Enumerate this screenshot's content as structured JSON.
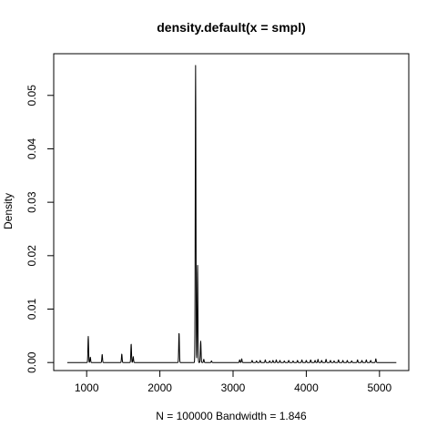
{
  "chart_data": {
    "type": "line",
    "title": "density.default(x = smpl)",
    "xlabel": "N = 100000   Bandwidth = 1.846",
    "ylabel": "Density",
    "xlim": [
      550,
      5400
    ],
    "ylim": [
      -0.0015,
      0.0578
    ],
    "xticks": [
      1000,
      2000,
      3000,
      4000,
      5000
    ],
    "yticks": [
      0.0,
      0.01,
      0.02,
      0.03,
      0.04,
      0.05
    ],
    "ytick_labels": [
      "0.00",
      "0.01",
      "0.02",
      "0.03",
      "0.04",
      "0.05"
    ],
    "grid": false,
    "legend": "none",
    "line_color": "#000000",
    "curve_range": [
      735,
      5230
    ],
    "series": [
      {
        "peaks": [
          [
            1022,
            0.0049
          ],
          [
            1050,
            0.001
          ],
          [
            1212,
            0.0015
          ],
          [
            1480,
            0.0016
          ],
          [
            1608,
            0.0035
          ],
          [
            1636,
            0.0011
          ],
          [
            2262,
            0.0056
          ],
          [
            2488,
            0.0556
          ],
          [
            2515,
            0.0183
          ],
          [
            2558,
            0.004
          ],
          [
            2600,
            0.0006
          ],
          [
            2705,
            0.0003
          ],
          [
            3090,
            0.0005
          ],
          [
            3118,
            0.0007
          ],
          [
            3260,
            0.0004
          ],
          [
            3320,
            0.0003
          ],
          [
            3370,
            0.0004
          ],
          [
            3440,
            0.0005
          ],
          [
            3500,
            0.0003
          ],
          [
            3545,
            0.0004
          ],
          [
            3590,
            0.0005
          ],
          [
            3640,
            0.0004
          ],
          [
            3700,
            0.0003
          ],
          [
            3760,
            0.0004
          ],
          [
            3820,
            0.0003
          ],
          [
            3880,
            0.0004
          ],
          [
            3940,
            0.0005
          ],
          [
            4000,
            0.0004
          ],
          [
            4060,
            0.0005
          ],
          [
            4120,
            0.0004
          ],
          [
            4160,
            0.0006
          ],
          [
            4210,
            0.0004
          ],
          [
            4270,
            0.0006
          ],
          [
            4330,
            0.0004
          ],
          [
            4380,
            0.0003
          ],
          [
            4440,
            0.0005
          ],
          [
            4500,
            0.0004
          ],
          [
            4560,
            0.0004
          ],
          [
            4620,
            0.0003
          ],
          [
            4700,
            0.0005
          ],
          [
            4760,
            0.0004
          ],
          [
            4820,
            0.0005
          ],
          [
            4880,
            0.0004
          ],
          [
            4950,
            0.0007
          ]
        ]
      }
    ]
  }
}
